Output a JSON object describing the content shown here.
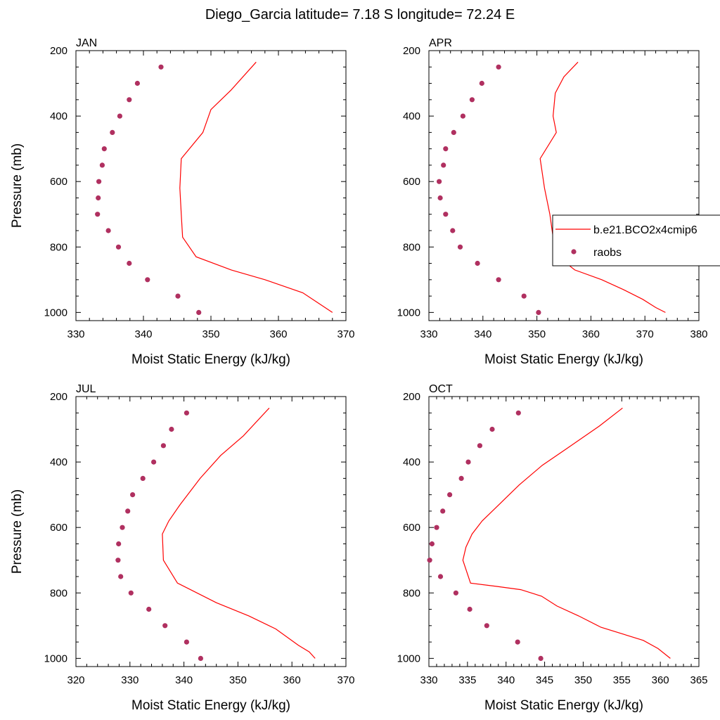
{
  "title": "Diego_Garcia  latitude= 7.18 S longitude= 72.24 E",
  "colors": {
    "model": "#ff0000",
    "obs": "#b03060"
  },
  "legend": {
    "model_label": "b.e21.BCO2x4cmip6",
    "obs_label": "raobs"
  },
  "chart_data": [
    {
      "type": "line",
      "panel": "JAN",
      "xlabel": "Moist Static Energy (kJ/kg)",
      "ylabel": "Pressure (mb)",
      "xlim": [
        330,
        370
      ],
      "xticks": [
        330,
        340,
        350,
        360,
        370
      ],
      "ylim": [
        200,
        1025
      ],
      "yticks": [
        200,
        400,
        600,
        800,
        1000
      ],
      "series": [
        {
          "name": "b.e21.BCO2x4cmip6",
          "style": "line",
          "x": [
            368.0,
            365.8,
            363.6,
            358.0,
            353.0,
            347.8,
            345.8,
            345.6,
            345.4,
            345.6,
            348.8,
            350.0,
            353.0,
            356.7
          ],
          "y": [
            1000,
            970,
            940,
            900,
            870,
            830,
            770,
            700,
            620,
            530,
            450,
            380,
            320,
            235
          ]
        },
        {
          "name": "raobs",
          "style": "scatter",
          "x": [
            348.2,
            345.1,
            340.6,
            337.9,
            336.3,
            334.8,
            333.2,
            333.3,
            333.4,
            333.9,
            334.2,
            335.4,
            336.5,
            337.9,
            339.1,
            342.6
          ],
          "y": [
            1000,
            950,
            900,
            850,
            800,
            750,
            700,
            650,
            600,
            550,
            500,
            450,
            400,
            350,
            300,
            250
          ]
        }
      ]
    },
    {
      "type": "line",
      "panel": "APR",
      "xlabel": "Moist Static Energy (kJ/kg)",
      "ylabel": "",
      "xlim": [
        330,
        380
      ],
      "xticks": [
        330,
        340,
        350,
        360,
        370,
        380
      ],
      "ylim": [
        200,
        1025
      ],
      "yticks": [
        200,
        400,
        600,
        800,
        1000
      ],
      "series": [
        {
          "name": "b.e21.BCO2x4cmip6",
          "style": "line",
          "x": [
            373.8,
            372.0,
            369.6,
            366.0,
            362.0,
            357.0,
            354.0,
            353.0,
            352.4,
            351.4,
            350.6,
            353.6,
            353.0,
            353.4,
            355.0,
            357.6
          ],
          "y": [
            1000,
            985,
            960,
            930,
            900,
            870,
            830,
            770,
            700,
            620,
            530,
            450,
            400,
            330,
            280,
            235
          ]
        },
        {
          "name": "raobs",
          "style": "scatter",
          "x": [
            350.3,
            347.6,
            342.9,
            339.0,
            335.8,
            334.4,
            333.1,
            332.1,
            331.9,
            332.7,
            333.1,
            334.6,
            336.3,
            338.0,
            339.8,
            342.9
          ],
          "y": [
            1000,
            950,
            900,
            850,
            800,
            750,
            700,
            650,
            600,
            550,
            500,
            450,
            400,
            350,
            300,
            250
          ]
        }
      ]
    },
    {
      "type": "line",
      "panel": "JUL",
      "xlabel": "Moist Static Energy (kJ/kg)",
      "ylabel": "Pressure (mb)",
      "xlim": [
        320,
        370
      ],
      "xticks": [
        320,
        330,
        340,
        350,
        360,
        370
      ],
      "ylim": [
        200,
        1025
      ],
      "yticks": [
        200,
        400,
        600,
        800,
        1000
      ],
      "series": [
        {
          "name": "b.e21.BCO2x4cmip6",
          "style": "line",
          "x": [
            364.3,
            363.2,
            361.2,
            357.0,
            352.0,
            346.0,
            338.8,
            336.2,
            336.0,
            337.2,
            339.3,
            343.0,
            346.8,
            351.0,
            355.8
          ],
          "y": [
            1000,
            980,
            960,
            910,
            870,
            830,
            770,
            700,
            620,
            580,
            530,
            450,
            380,
            320,
            235
          ]
        },
        {
          "name": "raobs",
          "style": "scatter",
          "x": [
            343.1,
            340.5,
            336.5,
            333.5,
            330.2,
            328.3,
            327.8,
            327.9,
            328.6,
            329.6,
            330.5,
            332.4,
            334.4,
            336.2,
            337.7,
            340.5
          ],
          "y": [
            1000,
            950,
            900,
            850,
            800,
            750,
            700,
            650,
            600,
            550,
            500,
            450,
            400,
            350,
            300,
            250
          ]
        }
      ]
    },
    {
      "type": "line",
      "panel": "OCT",
      "xlabel": "Moist Static Energy (kJ/kg)",
      "ylabel": "",
      "xlim": [
        330,
        365
      ],
      "xticks": [
        330,
        335,
        340,
        345,
        350,
        355,
        360,
        365
      ],
      "ylim": [
        200,
        1025
      ],
      "yticks": [
        200,
        400,
        600,
        800,
        1000
      ],
      "series": [
        {
          "name": "b.e21.BCO2x4cmip6",
          "style": "line",
          "x": [
            361.3,
            359.7,
            357.8,
            352.3,
            349.4,
            346.6,
            344.6,
            341.9,
            338.8,
            335.4,
            334.4,
            334.8,
            335.6,
            336.9,
            339.1,
            341.7,
            344.7,
            347.8,
            352.1,
            355.1
          ],
          "y": [
            1000,
            970,
            945,
            905,
            870,
            840,
            810,
            790,
            780,
            770,
            700,
            660,
            620,
            580,
            530,
            470,
            410,
            360,
            290,
            235
          ]
        },
        {
          "name": "raobs",
          "style": "scatter",
          "x": [
            344.5,
            341.5,
            337.5,
            335.3,
            333.5,
            331.5,
            330.1,
            330.4,
            331.0,
            331.8,
            332.7,
            334.2,
            335.1,
            336.6,
            338.2,
            341.6
          ],
          "y": [
            1000,
            950,
            900,
            850,
            800,
            750,
            700,
            650,
            600,
            550,
            500,
            450,
            400,
            350,
            300,
            250
          ]
        }
      ]
    }
  ]
}
